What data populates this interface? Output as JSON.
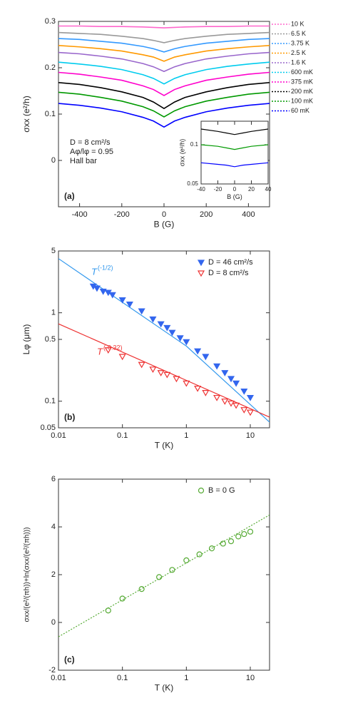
{
  "chart_data": [
    {
      "type": "line",
      "panel_label": "(a)",
      "x_label": "B (G)",
      "y_label": "σxx (e²/h)",
      "annotations": [
        "D = 8 cm²/s",
        "Aφ/lφ = 0.95",
        "Hall bar"
      ],
      "xlim": [
        -500,
        500
      ],
      "xticks": [
        -400,
        -200,
        0,
        200,
        400
      ],
      "ylim": [
        -0.1,
        0.3
      ],
      "yticks": [
        0,
        0.1,
        0.2,
        0.3
      ],
      "legend": "outside-right",
      "x": [
        -500,
        -400,
        -300,
        -200,
        -100,
        -50,
        0,
        50,
        100,
        200,
        300,
        400,
        500
      ],
      "series": [
        {
          "name": "10 K",
          "color": "#ff66cc",
          "values": [
            0.29,
            0.29,
            0.289,
            0.289,
            0.288,
            0.287,
            0.286,
            0.287,
            0.288,
            0.289,
            0.289,
            0.29,
            0.29
          ]
        },
        {
          "name": "6.5 K",
          "color": "#999999",
          "values": [
            0.276,
            0.274,
            0.272,
            0.268,
            0.263,
            0.259,
            0.254,
            0.259,
            0.263,
            0.268,
            0.272,
            0.274,
            0.276
          ]
        },
        {
          "name": "3.75 K",
          "color": "#3399ff",
          "values": [
            0.263,
            0.261,
            0.257,
            0.253,
            0.246,
            0.241,
            0.234,
            0.241,
            0.246,
            0.253,
            0.257,
            0.261,
            0.263
          ]
        },
        {
          "name": "2.5 K",
          "color": "#ff9900",
          "values": [
            0.248,
            0.245,
            0.241,
            0.236,
            0.228,
            0.223,
            0.214,
            0.223,
            0.228,
            0.236,
            0.241,
            0.245,
            0.248
          ]
        },
        {
          "name": "1.6 K",
          "color": "#9966cc",
          "values": [
            0.233,
            0.23,
            0.225,
            0.219,
            0.209,
            0.202,
            0.192,
            0.202,
            0.209,
            0.219,
            0.225,
            0.23,
            0.233
          ]
        },
        {
          "name": "600 mK",
          "color": "#00ccee",
          "values": [
            0.212,
            0.208,
            0.203,
            0.196,
            0.185,
            0.177,
            0.165,
            0.177,
            0.185,
            0.196,
            0.203,
            0.208,
            0.212
          ]
        },
        {
          "name": "375 mK",
          "color": "#ff00cc",
          "values": [
            0.19,
            0.186,
            0.18,
            0.173,
            0.161,
            0.153,
            0.14,
            0.153,
            0.161,
            0.173,
            0.18,
            0.186,
            0.19
          ]
        },
        {
          "name": "200 mK",
          "color": "#000000",
          "values": [
            0.168,
            0.164,
            0.157,
            0.148,
            0.136,
            0.126,
            0.112,
            0.126,
            0.136,
            0.148,
            0.157,
            0.164,
            0.168
          ]
        },
        {
          "name": "100 mK",
          "color": "#009900",
          "values": [
            0.147,
            0.143,
            0.136,
            0.128,
            0.116,
            0.107,
            0.094,
            0.107,
            0.116,
            0.128,
            0.136,
            0.143,
            0.147
          ]
        },
        {
          "name": "60 mK",
          "color": "#0000ff",
          "values": [
            0.123,
            0.119,
            0.113,
            0.105,
            0.093,
            0.085,
            0.072,
            0.085,
            0.093,
            0.105,
            0.113,
            0.119,
            0.123
          ]
        }
      ]
    },
    {
      "type": "line",
      "x_label": "B (G)",
      "y_label": "σxx (e²/h)",
      "xlim": [
        -40,
        40
      ],
      "xticks": [
        -40,
        -20,
        0,
        20,
        40
      ],
      "ylim": [
        0.05,
        0.13
      ],
      "yticks": [
        0.05,
        0.1
      ],
      "x": [
        -40,
        -20,
        -10,
        0,
        10,
        20,
        40
      ],
      "series": [
        {
          "color": "#000000",
          "values": [
            0.12,
            0.117,
            0.115,
            0.113,
            0.115,
            0.117,
            0.12
          ]
        },
        {
          "color": "#009900",
          "values": [
            0.1,
            0.098,
            0.096,
            0.094,
            0.096,
            0.098,
            0.1
          ]
        },
        {
          "color": "#0000ff",
          "values": [
            0.077,
            0.075,
            0.074,
            0.072,
            0.074,
            0.075,
            0.077
          ]
        }
      ]
    },
    {
      "type": "scatter",
      "panel_label": "(b)",
      "x_label": "T (K)",
      "y_label": "Lφ (μm)",
      "xlog": true,
      "ylog": true,
      "legend": "top-right",
      "xlim": [
        0.01,
        20
      ],
      "xticks": [
        0.01,
        0.1,
        1,
        10
      ],
      "ylim": [
        0.05,
        5
      ],
      "yticks": [
        0.05,
        0.1,
        0.5,
        1,
        5
      ],
      "series": [
        {
          "name": "D = 46 cm²/s",
          "color": "#3366ee",
          "marker": "triangle-down-filled",
          "x": [
            0.035,
            0.04,
            0.05,
            0.06,
            0.07,
            0.1,
            0.13,
            0.2,
            0.3,
            0.4,
            0.5,
            0.6,
            0.8,
            1,
            1.5,
            2,
            3,
            4,
            5,
            6,
            8,
            10
          ],
          "values": [
            2.0,
            1.9,
            1.75,
            1.7,
            1.6,
            1.4,
            1.25,
            1.05,
            0.85,
            0.75,
            0.68,
            0.6,
            0.52,
            0.47,
            0.37,
            0.32,
            0.25,
            0.21,
            0.18,
            0.16,
            0.13,
            0.11
          ]
        },
        {
          "name": "D = 8 cm²/s",
          "color": "#ee3333",
          "marker": "triangle-down-open",
          "x": [
            0.06,
            0.1,
            0.2,
            0.3,
            0.4,
            0.5,
            0.7,
            1,
            1.5,
            2,
            3,
            4,
            5,
            6,
            8,
            10
          ],
          "values": [
            0.38,
            0.32,
            0.26,
            0.23,
            0.21,
            0.2,
            0.18,
            0.16,
            0.14,
            0.125,
            0.11,
            0.1,
            0.095,
            0.09,
            0.08,
            0.075
          ]
        }
      ],
      "fits": [
        {
          "label": "T",
          "label_exp": "(-1/2)",
          "color": "#3399ee",
          "style": "solid",
          "x": [
            0.01,
            1,
            20
          ],
          "values": [
            4.1,
            0.42,
            0.058
          ]
        },
        {
          "label": "T",
          "label_exp": "(-0.32)",
          "color": "#ee3333",
          "style": "solid",
          "x": [
            0.01,
            20
          ],
          "values": [
            0.75,
            0.066
          ]
        }
      ]
    },
    {
      "type": "scatter",
      "panel_label": "(c)",
      "x_label": "T (K)",
      "y_label": "σxx/(e²/(πh))+ln(σxx/(e²/(πh)))",
      "xlog": true,
      "legend": "top-right",
      "xlim": [
        0.01,
        20
      ],
      "xticks": [
        0.01,
        0.1,
        1,
        10
      ],
      "ylim": [
        -2,
        6
      ],
      "yticks": [
        -2,
        0,
        2,
        4,
        6
      ],
      "series": [
        {
          "name": "B = 0 G",
          "color": "#55aa33",
          "marker": "circle-open",
          "x": [
            0.06,
            0.1,
            0.2,
            0.375,
            0.6,
            1,
            1.6,
            2.5,
            3.75,
            5,
            6.5,
            8,
            10
          ],
          "values": [
            0.5,
            1.0,
            1.4,
            1.9,
            2.2,
            2.6,
            2.85,
            3.1,
            3.3,
            3.4,
            3.6,
            3.7,
            3.8
          ]
        }
      ],
      "fits": [
        {
          "color": "#55aa33",
          "style": "dotted",
          "x": [
            0.01,
            20
          ],
          "values": [
            -0.6,
            4.5
          ]
        }
      ]
    }
  ]
}
